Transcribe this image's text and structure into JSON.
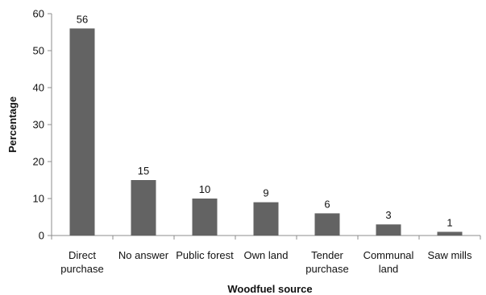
{
  "chart_data": {
    "type": "bar",
    "title": "",
    "xlabel": "Woodfuel source",
    "ylabel": "Percentage",
    "ylim": [
      0,
      60
    ],
    "yticks": [
      0,
      10,
      20,
      30,
      40,
      50,
      60
    ],
    "grid": false,
    "categories": [
      [
        "Direct",
        "purchase"
      ],
      [
        "No answer"
      ],
      [
        "Public forest"
      ],
      [
        "Own land"
      ],
      [
        "Tender",
        "purchase"
      ],
      [
        "Communal",
        "land"
      ],
      [
        "Saw mills"
      ]
    ],
    "values": [
      56,
      15,
      10,
      9,
      6,
      3,
      1
    ],
    "bar_color": "#636363",
    "axis_color": "#8c8c8c"
  }
}
